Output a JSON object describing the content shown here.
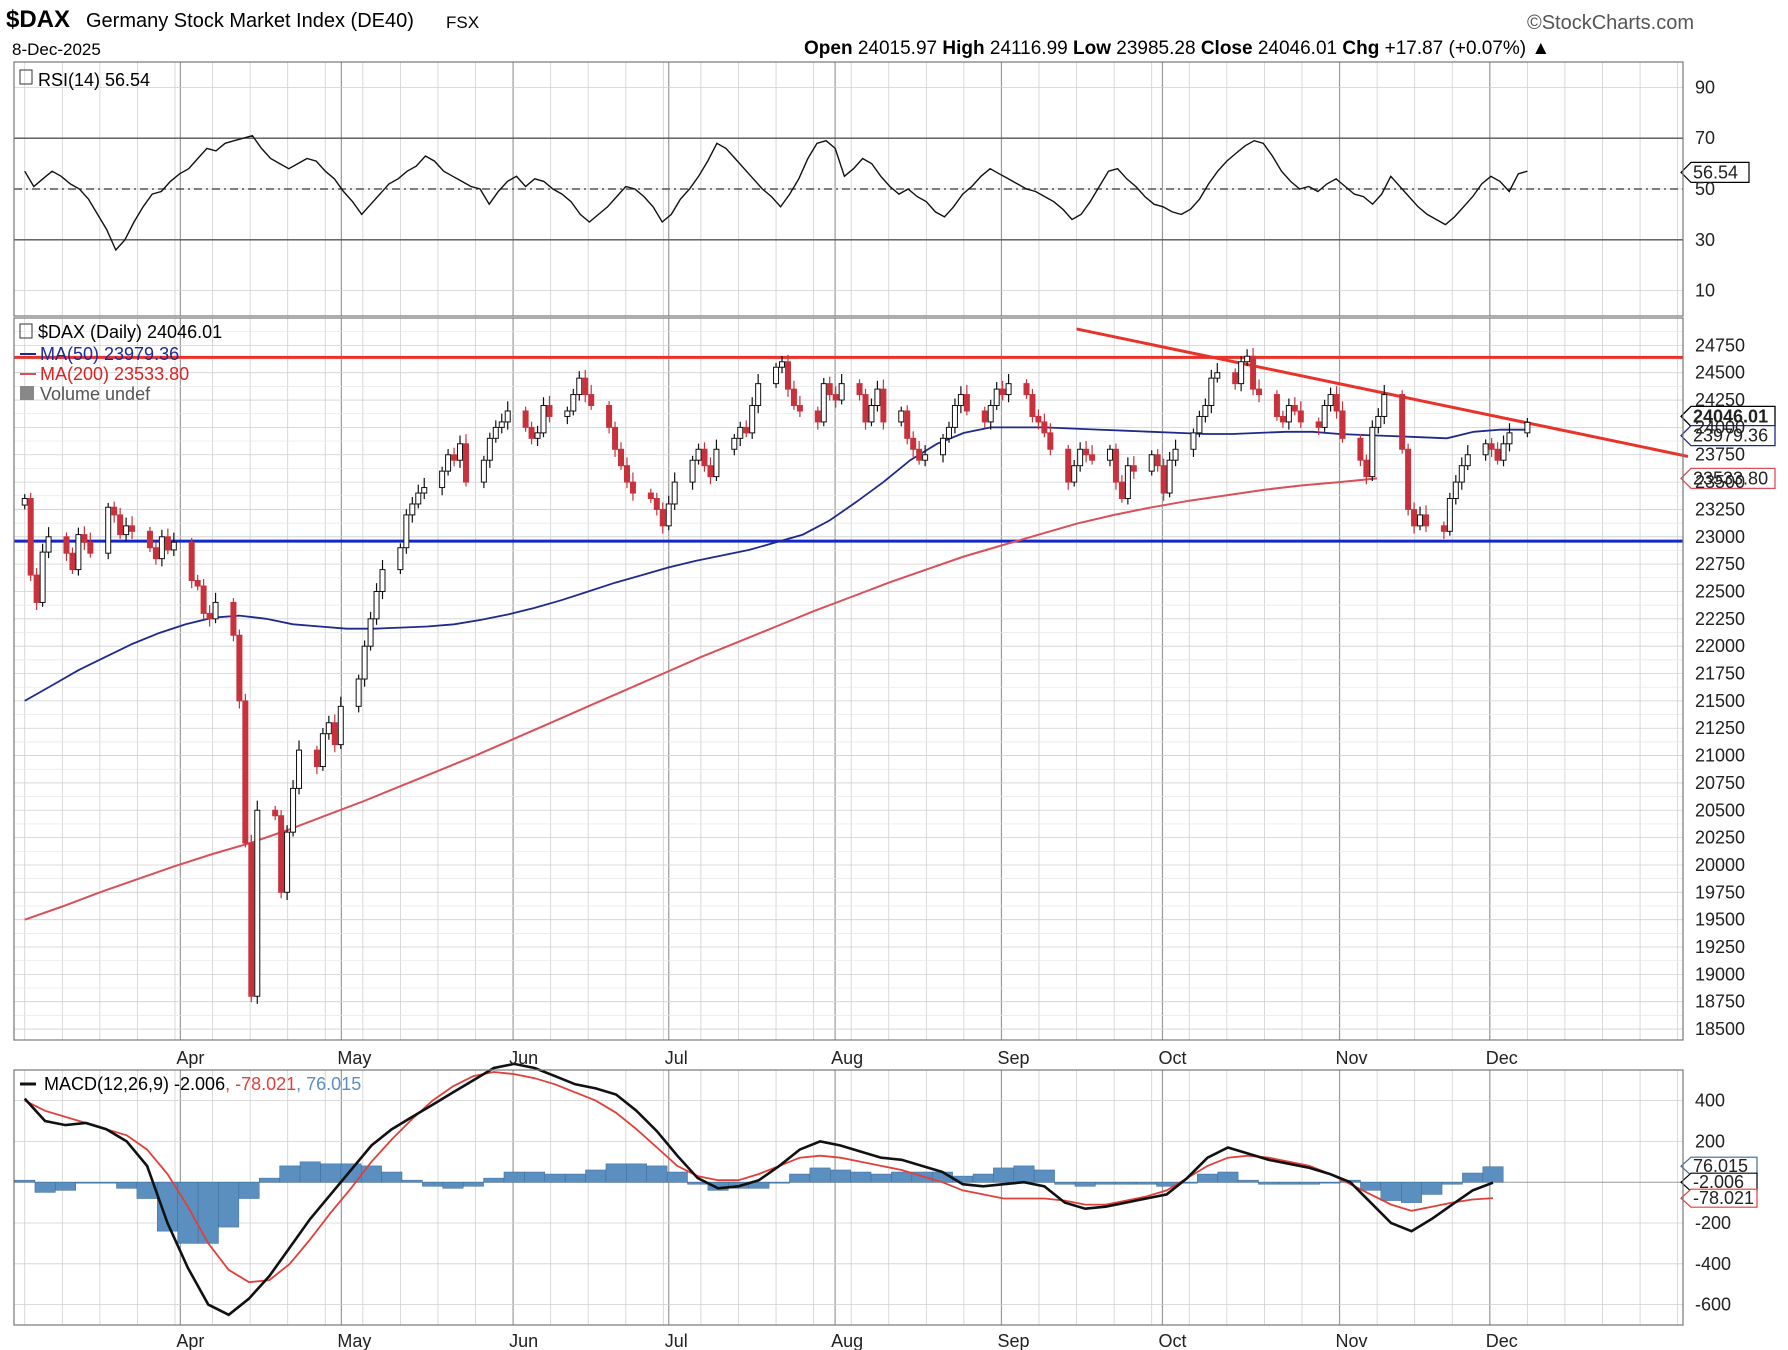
{
  "header": {
    "symbol": "$DAX",
    "name": "Germany Stock Market Index (DE40)",
    "exchange": "FSX",
    "date": "8-Dec-2025",
    "brand": "©StockCharts.com",
    "open_label": "Open",
    "open": "24015.97",
    "high_label": "High",
    "high": "24116.99",
    "low_label": "Low",
    "low": "23985.28",
    "close_label": "Close",
    "close": "24046.01",
    "chg_label": "Chg",
    "chg": "+17.87 (+0.07%)",
    "chg_arrow": "▲"
  },
  "colors": {
    "up": "#ffffff",
    "down": "#c8323c",
    "ma50": "#1e2a8c",
    "ma200": "#d9505a",
    "resistance": "#e8322a",
    "support": "#1428c8",
    "trend": "#e8322a",
    "histogram": "#5b8fc0",
    "macd": "#111111",
    "signal": "#e0403a",
    "grid": "#d0d0d0"
  },
  "chart_data": [
    {
      "type": "line",
      "panel": "rsi",
      "label": "RSI(14) 56.54",
      "current_value": "56.54",
      "ylim": [
        0,
        100
      ],
      "y_ticks": [
        "90",
        "70",
        "50",
        "30",
        "10"
      ],
      "reference_lines": [
        70,
        50,
        30
      ],
      "x_ticks": [
        "Apr",
        "May",
        "Jun",
        "Jul",
        "Aug",
        "Sep",
        "Oct",
        "Nov",
        "Dec"
      ],
      "values": [
        57,
        51,
        54,
        57,
        55,
        52,
        50,
        46,
        40,
        34,
        26,
        30,
        37,
        43,
        48,
        49,
        53,
        56,
        58,
        62,
        66,
        65,
        68,
        69,
        70,
        71,
        66,
        62,
        60,
        58,
        60,
        62,
        61,
        57,
        54,
        49,
        45,
        40,
        44,
        48,
        52,
        54,
        57,
        59,
        63,
        61,
        57,
        55,
        53,
        51,
        50,
        44,
        49,
        53,
        55,
        51,
        54,
        53,
        50,
        48,
        45,
        40,
        37,
        40,
        43,
        47,
        51,
        50,
        47,
        43,
        37,
        40,
        46,
        50,
        55,
        61,
        68,
        66,
        62,
        58,
        54,
        50,
        47,
        43,
        48,
        54,
        62,
        68,
        69,
        66,
        55,
        58,
        62,
        60,
        55,
        51,
        48,
        50,
        47,
        45,
        41,
        39,
        43,
        48,
        51,
        55,
        58,
        56,
        54,
        52,
        50,
        49,
        47,
        45,
        42,
        38,
        40,
        45,
        51,
        57,
        58,
        54,
        51,
        47,
        44,
        43,
        41,
        40,
        42,
        46,
        52,
        57,
        61,
        64,
        67,
        69,
        68,
        63,
        57,
        53,
        50,
        51,
        49,
        52,
        54,
        51,
        48,
        47,
        44,
        48,
        55,
        51,
        47,
        43,
        40,
        38,
        36,
        39,
        43,
        47,
        52,
        55,
        53,
        49,
        56,
        57
      ],
      "x_start": "2025-03-03",
      "x_end": "2025-12-08"
    },
    {
      "type": "candlestick",
      "panel": "price",
      "title": "$DAX (Daily) 24046.01",
      "legend": [
        "MA(50) 23979.36",
        "MA(200) 23533.80",
        "Volume undef"
      ],
      "ylim": [
        18400,
        25000
      ],
      "y_ticks": [
        "24750",
        "24500",
        "24250",
        "24000",
        "23750",
        "23500",
        "23250",
        "23000",
        "22750",
        "22500",
        "22250",
        "22000",
        "21750",
        "21500",
        "21250",
        "21000",
        "20750",
        "20500",
        "20250",
        "20000",
        "19750",
        "19500",
        "19250",
        "19000",
        "18750",
        "18500"
      ],
      "x_ticks": [
        "Apr",
        "May",
        "Jun",
        "Jul",
        "Aug",
        "Sep",
        "Oct",
        "Nov",
        "Dec"
      ],
      "price_tags": [
        {
          "label": "24046.01",
          "value": 24046.01,
          "kind": "close"
        },
        {
          "label": "23979.36",
          "value": 23979.36,
          "kind": "ma50"
        },
        {
          "label": "23533.80",
          "value": 23533.8,
          "kind": "ma200"
        }
      ],
      "horizontal_lines": [
        {
          "name": "resistance",
          "value": 24640
        },
        {
          "name": "support",
          "value": 22960
        }
      ],
      "trendline": {
        "from": {
          "date": "2025-09-15",
          "value": 24900
        },
        "to": {
          "date": "2025-12-12",
          "value": 24000
        }
      },
      "closes": [
        23350,
        22650,
        22400,
        22860,
        23000,
        22850,
        22700,
        23020,
        22950,
        22850,
        23270,
        23200,
        23020,
        23100,
        23050,
        22900,
        22800,
        23000,
        22880,
        22950,
        22600,
        22550,
        22300,
        22250,
        22400,
        22100,
        21500,
        20200,
        18800,
        20500,
        20450,
        19750,
        20300,
        20700,
        21050,
        20900,
        21200,
        21300,
        21100,
        21450,
        21700,
        22000,
        22250,
        22500,
        22700,
        22900,
        23200,
        23300,
        23400,
        23450,
        23600,
        23750,
        23700,
        23850,
        23500,
        23700,
        23900,
        24000,
        24050,
        24150,
        24000,
        23900,
        23950,
        24200,
        24100,
        24150,
        24300,
        24450,
        24300,
        24200,
        24000,
        23800,
        23650,
        23500,
        23400,
        23350,
        23250,
        23100,
        23300,
        23500,
        23700,
        23800,
        23650,
        23550,
        23800,
        23900,
        24000,
        23950,
        24200,
        24400,
        24550,
        24600,
        24350,
        24200,
        24150,
        24050,
        24400,
        24300,
        24250,
        24400,
        24300,
        24050,
        24200,
        24350,
        24050,
        24150,
        23900,
        23800,
        23700,
        23750,
        23900,
        24000,
        24200,
        24300,
        24150,
        24050,
        24200,
        24350,
        24300,
        24400,
        24300,
        24100,
        24050,
        23950,
        23800,
        23500,
        23650,
        23800,
        23750,
        23700,
        23800,
        23500,
        23350,
        23650,
        23600,
        23750,
        23650,
        23400,
        23700,
        23800,
        23950,
        24100,
        24200,
        24450,
        24500,
        24400,
        24600,
        24650,
        24350,
        24300,
        24100,
        24050,
        24200,
        24150,
        24050,
        24000,
        24200,
        24300,
        24150,
        23900,
        23700,
        23550,
        24000,
        24100,
        24300,
        23800,
        23250,
        23100,
        23200,
        23100,
        23050,
        23350,
        23500,
        23650,
        23750,
        23850,
        23800,
        23700,
        23850,
        23950,
        24046.01
      ],
      "ma50": [
        21500,
        21640,
        21780,
        21900,
        22020,
        22120,
        22200,
        22260,
        22280,
        22250,
        22200,
        22180,
        22160,
        22160,
        22170,
        22180,
        22200,
        22240,
        22290,
        22350,
        22420,
        22500,
        22580,
        22650,
        22720,
        22780,
        22830,
        22880,
        22950,
        23020,
        23150,
        23320,
        23500,
        23700,
        23850,
        23950,
        24000,
        24000,
        24000,
        23990,
        23980,
        23970,
        23960,
        23950,
        23940,
        23940,
        23950,
        23960,
        23960,
        23940,
        23930,
        23920,
        23910,
        23900,
        23960,
        23980,
        23979.36
      ],
      "ma50_start": "2025-03-03",
      "ma50_step_days": 5,
      "ma200": [
        19500,
        19620,
        19750,
        19870,
        19990,
        20100,
        20200,
        20320,
        20450,
        20580,
        20720,
        20860,
        21000,
        21150,
        21300,
        21450,
        21600,
        21750,
        21900,
        22040,
        22180,
        22320,
        22450,
        22580,
        22700,
        22820,
        22920,
        23020,
        23120,
        23200,
        23270,
        23330,
        23380,
        23430,
        23470,
        23500,
        23533.8
      ],
      "ma200_start": "2025-03-03",
      "ma200_step_days": 7
    },
    {
      "type": "line",
      "panel": "macd",
      "label_prefix": "MACD(12,26,9)",
      "label_macd": "-2.006",
      "label_signal": "-78.021",
      "label_hist": "76.015",
      "ylim": [
        -700,
        550
      ],
      "y_ticks": [
        "400",
        "200",
        "-200",
        "-400",
        "-600"
      ],
      "x_ticks": [
        "Apr",
        "May",
        "Jun",
        "Jul",
        "Aug",
        "Sep",
        "Oct",
        "Nov",
        "Dec"
      ],
      "price_tags": [
        {
          "label": "76.015",
          "value": 76.015,
          "kind": "hist"
        },
        {
          "label": "-2.006",
          "value": -2.006,
          "kind": "macd"
        },
        {
          "label": "-78.021",
          "value": -78.021,
          "kind": "signal"
        }
      ],
      "macd": [
        410,
        300,
        280,
        290,
        260,
        200,
        80,
        -200,
        -420,
        -600,
        -650,
        -570,
        -460,
        -320,
        -180,
        -60,
        60,
        180,
        260,
        320,
        380,
        440,
        500,
        560,
        580,
        560,
        520,
        480,
        460,
        430,
        350,
        250,
        130,
        20,
        -30,
        -20,
        10,
        80,
        160,
        200,
        180,
        150,
        120,
        110,
        80,
        50,
        -10,
        -20,
        -10,
        0,
        -20,
        -100,
        -130,
        -120,
        -100,
        -80,
        -60,
        20,
        120,
        170,
        140,
        110,
        90,
        70,
        40,
        0,
        -100,
        -200,
        -240,
        -180,
        -110,
        -40,
        -2.006
      ],
      "signal": [
        400,
        350,
        320,
        290,
        260,
        230,
        160,
        40,
        -120,
        -300,
        -430,
        -490,
        -480,
        -400,
        -280,
        -150,
        -30,
        100,
        210,
        310,
        400,
        470,
        520,
        540,
        530,
        510,
        480,
        440,
        400,
        340,
        260,
        170,
        80,
        30,
        10,
        10,
        40,
        80,
        120,
        130,
        120,
        100,
        80,
        60,
        30,
        0,
        -40,
        -60,
        -80,
        -80,
        -80,
        -90,
        -110,
        -110,
        -90,
        -70,
        -40,
        20,
        80,
        120,
        130,
        120,
        100,
        80,
        40,
        -10,
        -60,
        -110,
        -140,
        -120,
        -100,
        -85,
        -78.021
      ],
      "histogram": [
        10,
        -50,
        -40,
        0,
        0,
        -30,
        -80,
        -240,
        -300,
        -300,
        -220,
        -80,
        20,
        80,
        100,
        90,
        90,
        80,
        50,
        10,
        -20,
        -30,
        -20,
        20,
        50,
        50,
        40,
        40,
        60,
        90,
        90,
        80,
        50,
        -10,
        -40,
        -30,
        -30,
        0,
        40,
        70,
        60,
        50,
        40,
        50,
        50,
        50,
        30,
        40,
        70,
        80,
        60,
        -10,
        -20,
        -10,
        -10,
        -10,
        -20,
        0,
        40,
        50,
        10,
        -10,
        -10,
        -10,
        0,
        10,
        -40,
        -90,
        -100,
        -60,
        -10,
        45,
        76.015
      ],
      "x_start": "2025-03-03",
      "x_step_days": 3.8
    }
  ]
}
